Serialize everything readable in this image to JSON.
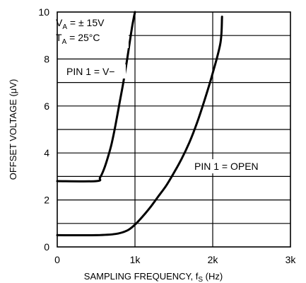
{
  "chart_data": {
    "type": "line",
    "xlabel": "SAMPLING FREQUENCY, f",
    "xlabel_sub": "S",
    "xlabel_unit": " (Hz)",
    "ylabel": "OFFSET VOLTAGE (μV)",
    "xlim": [
      0,
      3000
    ],
    "ylim": [
      0,
      10
    ],
    "x_ticks": [
      {
        "value": 0,
        "label": "0"
      },
      {
        "value": 1000,
        "label": "1k"
      },
      {
        "value": 2000,
        "label": "2k"
      },
      {
        "value": 3000,
        "label": "3k"
      }
    ],
    "y_ticks": [
      {
        "value": 0,
        "label": "0"
      },
      {
        "value": 2,
        "label": "2"
      },
      {
        "value": 4,
        "label": "4"
      },
      {
        "value": 6,
        "label": "6"
      },
      {
        "value": 8,
        "label": "8"
      },
      {
        "value": 10,
        "label": "10"
      }
    ],
    "grid": true,
    "series": [
      {
        "name": "PIN 1 = V−",
        "x": [
          0,
          500,
          550,
          600,
          650,
          700,
          750,
          800,
          850,
          900,
          950,
          975,
          1000
        ],
        "y": [
          2.8,
          2.8,
          2.95,
          3.3,
          3.8,
          4.4,
          5.2,
          6.1,
          7.0,
          8.0,
          9.1,
          9.6,
          10.0
        ]
      },
      {
        "name": "PIN 1 = OPEN",
        "x": [
          0,
          500,
          750,
          900,
          1000,
          1100,
          1200,
          1300,
          1400,
          1500,
          1600,
          1700,
          1800,
          1900,
          2000,
          2100,
          2120
        ],
        "y": [
          0.5,
          0.5,
          0.55,
          0.7,
          0.95,
          1.3,
          1.7,
          2.15,
          2.6,
          3.15,
          3.75,
          4.45,
          5.3,
          6.3,
          7.4,
          8.7,
          9.8
        ]
      }
    ],
    "conditions": {
      "line1_main": "V",
      "line1_sub": "A",
      "line1_rest": " = ± 15V",
      "line2_main": "T",
      "line2_sub": "A",
      "line2_rest": " = 25°C"
    }
  }
}
